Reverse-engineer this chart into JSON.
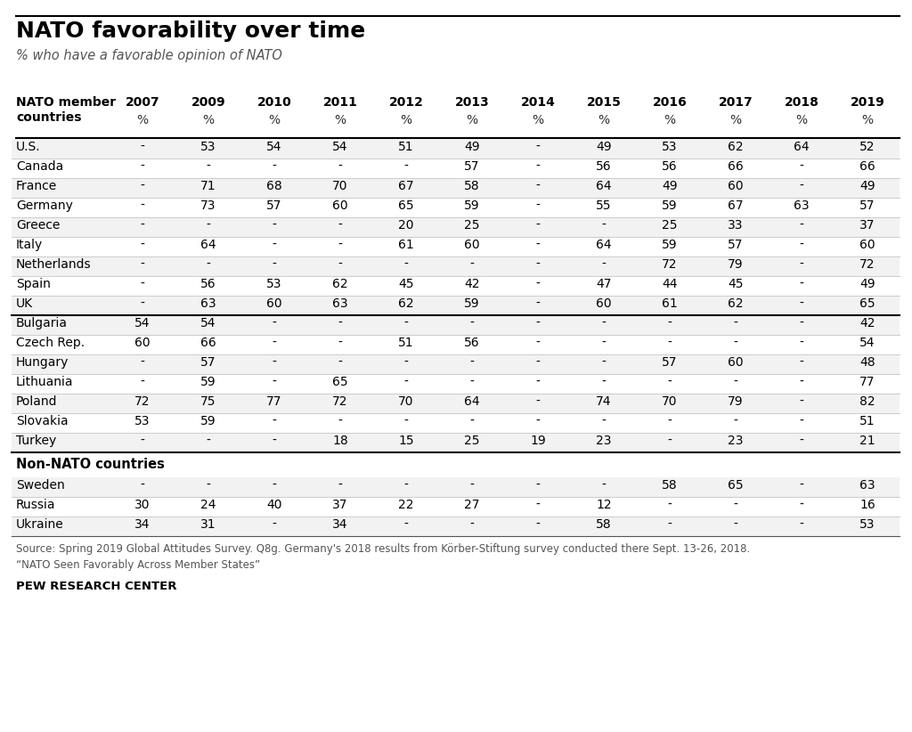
{
  "title": "NATO favorability over time",
  "subtitle": "% who have a favorable opinion of NATO",
  "columns": [
    "2007",
    "2009",
    "2010",
    "2011",
    "2012",
    "2013",
    "2014",
    "2015",
    "2016",
    "2017",
    "2018",
    "2019"
  ],
  "rows_section1": [
    [
      "U.S.",
      "-",
      "53",
      "54",
      "54",
      "51",
      "49",
      "-",
      "49",
      "53",
      "62",
      "64",
      "52"
    ],
    [
      "Canada",
      "-",
      "-",
      "-",
      "-",
      "-",
      "57",
      "-",
      "56",
      "56",
      "66",
      "-",
      "66"
    ],
    [
      "France",
      "-",
      "71",
      "68",
      "70",
      "67",
      "58",
      "-",
      "64",
      "49",
      "60",
      "-",
      "49"
    ],
    [
      "Germany",
      "-",
      "73",
      "57",
      "60",
      "65",
      "59",
      "-",
      "55",
      "59",
      "67",
      "63",
      "57"
    ],
    [
      "Greece",
      "-",
      "-",
      "-",
      "-",
      "20",
      "25",
      "-",
      "-",
      "25",
      "33",
      "-",
      "37"
    ],
    [
      "Italy",
      "-",
      "64",
      "-",
      "-",
      "61",
      "60",
      "-",
      "64",
      "59",
      "57",
      "-",
      "60"
    ],
    [
      "Netherlands",
      "-",
      "-",
      "-",
      "-",
      "-",
      "-",
      "-",
      "-",
      "72",
      "79",
      "-",
      "72"
    ],
    [
      "Spain",
      "-",
      "56",
      "53",
      "62",
      "45",
      "42",
      "-",
      "47",
      "44",
      "45",
      "-",
      "49"
    ],
    [
      "UK",
      "-",
      "63",
      "60",
      "63",
      "62",
      "59",
      "-",
      "60",
      "61",
      "62",
      "-",
      "65"
    ]
  ],
  "rows_section2": [
    [
      "Bulgaria",
      "54",
      "54",
      "-",
      "-",
      "-",
      "-",
      "-",
      "-",
      "-",
      "-",
      "-",
      "42"
    ],
    [
      "Czech Rep.",
      "60",
      "66",
      "-",
      "-",
      "51",
      "56",
      "-",
      "-",
      "-",
      "-",
      "-",
      "54"
    ],
    [
      "Hungary",
      "-",
      "57",
      "-",
      "-",
      "-",
      "-",
      "-",
      "-",
      "57",
      "60",
      "-",
      "48"
    ],
    [
      "Lithuania",
      "-",
      "59",
      "-",
      "65",
      "-",
      "-",
      "-",
      "-",
      "-",
      "-",
      "-",
      "77"
    ],
    [
      "Poland",
      "72",
      "75",
      "77",
      "72",
      "70",
      "64",
      "-",
      "74",
      "70",
      "79",
      "-",
      "82"
    ],
    [
      "Slovakia",
      "53",
      "59",
      "-",
      "-",
      "-",
      "-",
      "-",
      "-",
      "-",
      "-",
      "-",
      "51"
    ],
    [
      "Turkey",
      "-",
      "-",
      "-",
      "18",
      "15",
      "25",
      "19",
      "23",
      "-",
      "23",
      "-",
      "21"
    ]
  ],
  "rows_section3": [
    [
      "Sweden",
      "-",
      "-",
      "-",
      "-",
      "-",
      "-",
      "-",
      "-",
      "58",
      "65",
      "-",
      "63"
    ],
    [
      "Russia",
      "30",
      "24",
      "40",
      "37",
      "22",
      "27",
      "-",
      "12",
      "-",
      "-",
      "-",
      "16"
    ],
    [
      "Ukraine",
      "34",
      "31",
      "-",
      "34",
      "-",
      "-",
      "-",
      "58",
      "-",
      "-",
      "-",
      "53"
    ]
  ],
  "section2_header": "Non-NATO countries",
  "footnote": "Source: Spring 2019 Global Attitudes Survey. Q8g. Germany's 2018 results from Körber-Stiftung survey conducted there Sept. 13-26, 2018.\n“NATO Seen Favorably Across Member States”",
  "credit": "PEW RESEARCH CENTER",
  "bg_color": "#ffffff"
}
